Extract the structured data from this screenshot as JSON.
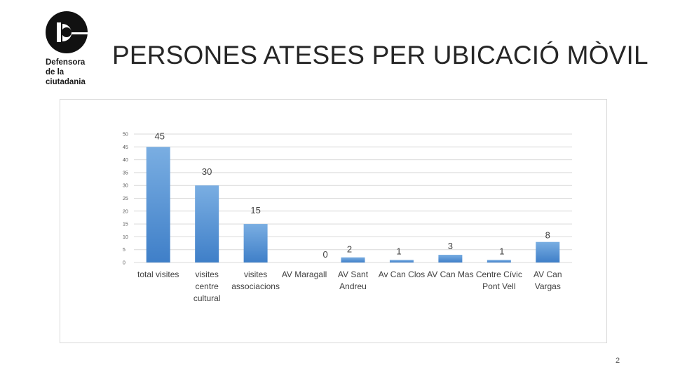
{
  "logo": {
    "icon": "defensora-logo-icon",
    "text": "Defensora\nde la\nciutadania"
  },
  "title": "PERSONES ATESES PER UBICACIÓ MÒVIL",
  "page_number": "2",
  "colors": {
    "bar_light": "#7aaee2",
    "bar_dark": "#3f7fc8",
    "grid": "#d9d9d9"
  },
  "chart_data": {
    "type": "bar",
    "title": "",
    "xlabel": "",
    "ylabel": "",
    "ylim": [
      0,
      50
    ],
    "yticks": [
      0,
      5,
      10,
      15,
      20,
      25,
      30,
      35,
      40,
      45,
      50
    ],
    "grid": true,
    "categories": [
      "total visites",
      "visites centre cultural",
      "visites associacions",
      "AV Maragall",
      "AV Sant Andreu",
      "Av Can Clos",
      "AV Can Mas",
      "Centre Cívic Pont Vell",
      "AV Can Vargas"
    ],
    "category_lines": [
      [
        "total visites"
      ],
      [
        "visites",
        "centre",
        "cultural"
      ],
      [
        "visites",
        "associacions"
      ],
      [
        "AV Maragall"
      ],
      [
        "AV Sant",
        "Andreu"
      ],
      [
        "Av Can Clos"
      ],
      [
        "AV Can Mas"
      ],
      [
        "Centre Cívic",
        "Pont Vell"
      ],
      [
        "AV Can",
        "Vargas"
      ]
    ],
    "values": [
      45,
      30,
      15,
      0,
      2,
      1,
      3,
      1,
      8
    ],
    "data_labels": [
      "45",
      "30",
      "15",
      "0",
      "2",
      "1",
      "3",
      "1",
      "8"
    ]
  }
}
